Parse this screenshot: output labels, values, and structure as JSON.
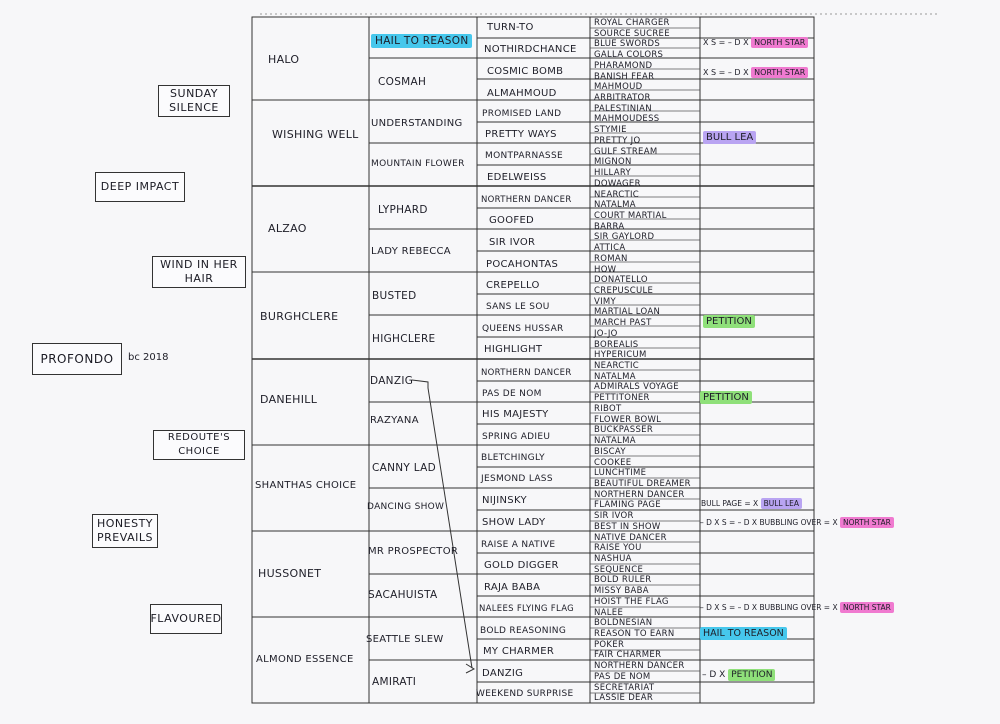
{
  "subject": {
    "name": "PROFONDO",
    "year_note": "bc 2018"
  },
  "sire": "DEEP IMPACT",
  "dam": "HONESTY PREVAILS",
  "gen2": [
    "SUNDAY SILENCE",
    "WIND IN HER HAIR",
    "REDOUTE'S CHOICE",
    "FLAVOURED"
  ],
  "gen3": [
    "HALO",
    "WISHING WELL",
    "ALZAO",
    "BURGHCLERE",
    "DANEHILL",
    "SHANTHAS CHOICE",
    "HUSSONET",
    "ALMOND ESSENCE"
  ],
  "gen4": [
    "HAIL TO REASON",
    "COSMAH",
    "UNDERSTANDING",
    "MOUNTAIN FLOWER",
    "LYPHARD",
    "LADY REBECCA",
    "BUSTED",
    "HIGHCLERE",
    "DANZIG",
    "RAZYANA",
    "CANNY LAD",
    "DANCING SHOW",
    "MR PROSPECTOR",
    "SACAHUISTA",
    "SEATTLE SLEW",
    "AMIRATI"
  ],
  "gen5": [
    "TURN-TO",
    "NOTHIRDCHANCE",
    "COSMIC BOMB",
    "ALMAHMOUD",
    "PROMISED LAND",
    "PRETTY WAYS",
    "MONTPARNASSE",
    "EDELWEISS",
    "NORTHERN DANCER",
    "GOOFED",
    "SIR IVOR",
    "POCAHONTAS",
    "CREPELLO",
    "SANS LE SOU",
    "QUEENS HUSSAR",
    "HIGHLIGHT",
    "NORTHERN DANCER",
    "PAS DE NOM",
    "HIS MAJESTY",
    "SPRING ADIEU",
    "BLETCHINGLY",
    "JESMOND LASS",
    "NIJINSKY",
    "SHOW LADY",
    "RAISE A NATIVE",
    "GOLD DIGGER",
    "RAJA BABA",
    "NALEES FLYING FLAG",
    "BOLD REASONING",
    "MY CHARMER",
    "DANZIG",
    "WEEKEND SURPRISE"
  ],
  "gen6": [
    "ROYAL CHARGER",
    "SOURCE SUCREE",
    "BLUE SWORDS",
    "GALLA COLORS",
    "PHARAMOND",
    "BANISH FEAR",
    "MAHMOUD",
    "ARBITRATOR",
    "PALESTINIAN",
    "MAHMOUDESS",
    "STYMIE",
    "PRETTY JO",
    "GULF STREAM",
    "MIGNON",
    "HILLARY",
    "DOWAGER",
    "NEARCTIC",
    "NATALMA",
    "COURT MARTIAL",
    "BARRA",
    "SIR GAYLORD",
    "ATTICA",
    "ROMAN",
    "HOW",
    "DONATELLO",
    "CREPUSCULE",
    "VIMY",
    "MARTIAL LOAN",
    "MARCH PAST",
    "JO-JO",
    "BOREALIS",
    "HYPERICUM",
    "NEARCTIC",
    "NATALMA",
    "ADMIRALS VOYAGE",
    "PETTITONER",
    "RIBOT",
    "FLOWER BOWL",
    "BUCKPASSER",
    "NATALMA",
    "BISCAY",
    "COOKEE",
    "LUNCHTIME",
    "BEAUTIFUL DREAMER",
    "NORTHERN DANCER",
    "FLAMING PAGE",
    "SIR IVOR",
    "BEST IN SHOW",
    "NATIVE DANCER",
    "RAISE YOU",
    "NASHUA",
    "SEQUENCE",
    "BOLD RULER",
    "MISSY BABA",
    "HOIST THE FLAG",
    "NALEE",
    "BOLDNESIAN",
    "REASON TO EARN",
    "POKER",
    "FAIR CHARMER",
    "NORTHERN DANCER",
    "PAS DE NOM",
    "SECRETARIAT",
    "LASSIE DEAR"
  ],
  "notes": {
    "n1_text": "x S = – D x",
    "n1_mark": "NORTH STAR",
    "n2_text": "x S = – D x",
    "n2_mark": "NORTH STAR",
    "n3_mark": "BULL LEA",
    "n4_mark": "PETITION",
    "n5_mark": "PETITION",
    "n6_text": "BULL PAGE = x",
    "n6_mark": "BULL LEA",
    "n7_text": "– D x S = – D x BUBBLING OVER = x",
    "n7_mark": "NORTH STAR",
    "n8_text": "– D x S = – D x BUBBLING OVER = x",
    "n8_mark": "NORTH STAR",
    "n9_mark": "HAIL TO REASON",
    "n10_text": "– D x",
    "n10_mark": "PETITION"
  },
  "colors": {
    "blue": "#46c7ec",
    "pink": "#f07ad0",
    "green": "#8fe07a",
    "purple": "#b9a4f2"
  }
}
